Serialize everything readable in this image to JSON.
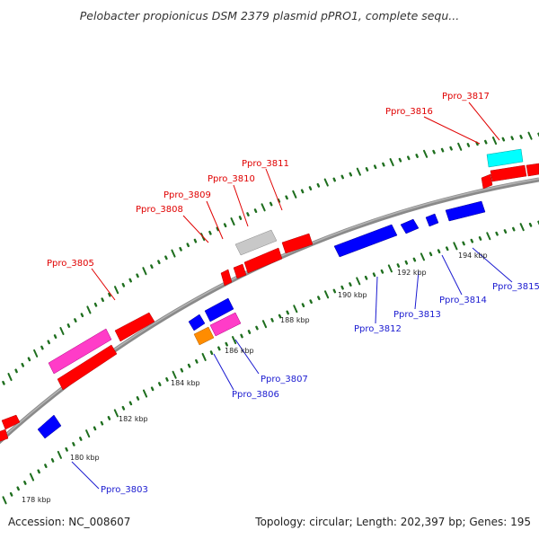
{
  "title": "Pelobacter propionicus DSM 2379 plasmid pPRO1, complete sequ...",
  "footer": {
    "accession": "Accession: NC_008607",
    "summary": "Topology: circular; Length: 202,397 bp; Genes: 195"
  },
  "colors": {
    "forward_label": "#e00000",
    "reverse_label": "#1a1ad0",
    "backbone": "#888888",
    "tick": "#1e6e1e"
  },
  "kbp_labels": [
    "178 kbp",
    "180 kbp",
    "182 kbp",
    "184 kbp",
    "186 kbp",
    "188 kbp",
    "190 kbp",
    "192 kbp",
    "194 kbp"
  ],
  "forward_genes": [
    "Ppro_3805",
    "Ppro_3808",
    "Ppro_3809",
    "Ppro_3810",
    "Ppro_3811",
    "Ppro_3816",
    "Ppro_3817"
  ],
  "reverse_genes": [
    "Ppro_3803",
    "Ppro_3806",
    "Ppro_3807",
    "Ppro_3812",
    "Ppro_3813",
    "Ppro_3814",
    "Ppro_3815"
  ]
}
